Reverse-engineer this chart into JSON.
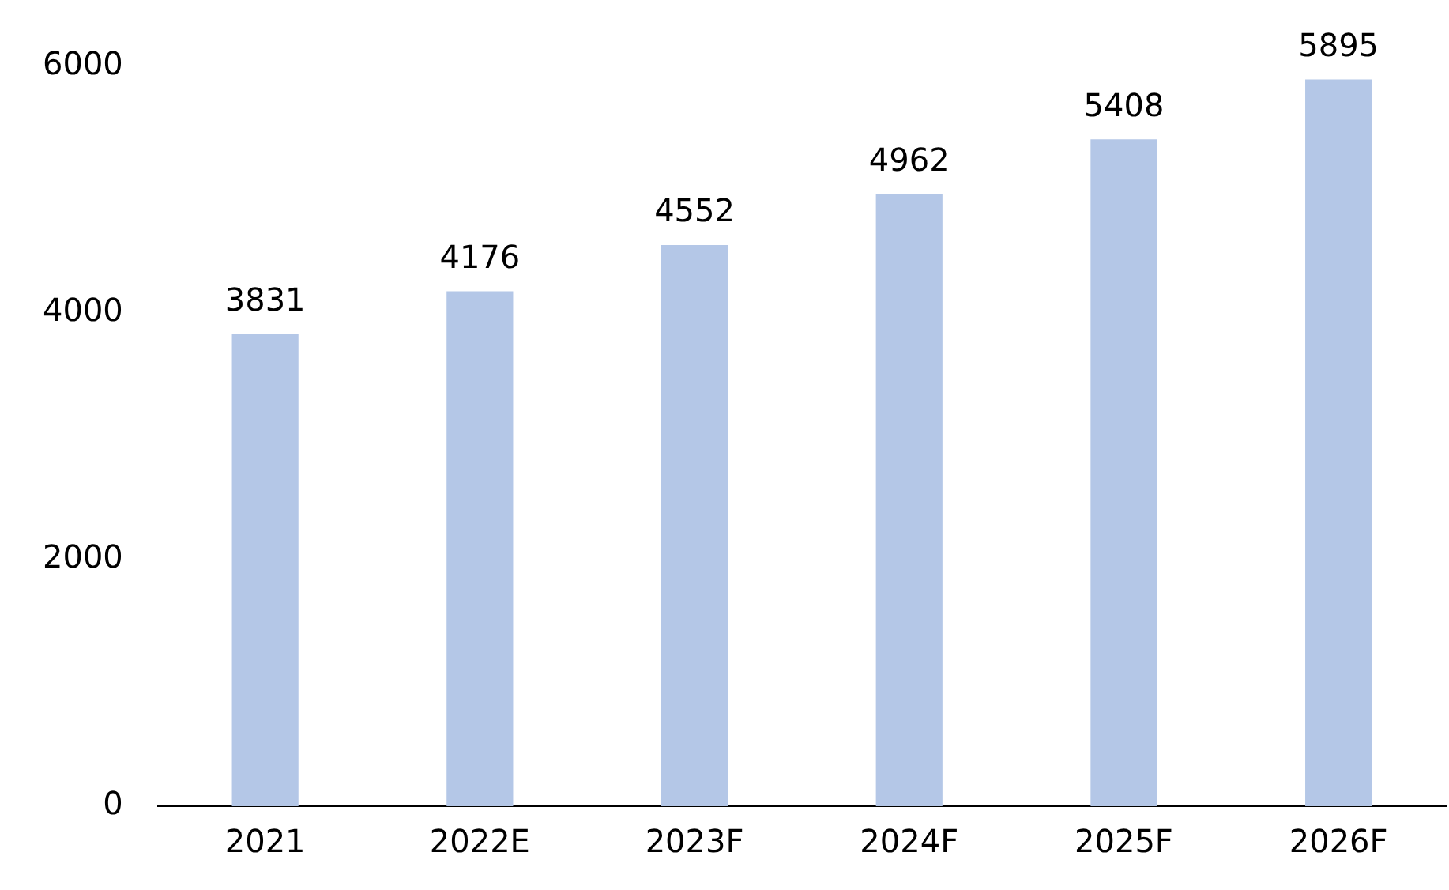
{
  "chart_data": {
    "type": "bar",
    "categories": [
      "2021",
      "2022E",
      "2023F",
      "2024F",
      "2025F",
      "2026F"
    ],
    "values": [
      3831,
      4176,
      4552,
      4962,
      5408,
      5895
    ],
    "color": "#b4c7e7",
    "ylim": [
      0,
      6000
    ],
    "yticks": [
      0,
      2000,
      4000,
      6000
    ],
    "grid": false,
    "legend": false,
    "data_labels": true
  }
}
